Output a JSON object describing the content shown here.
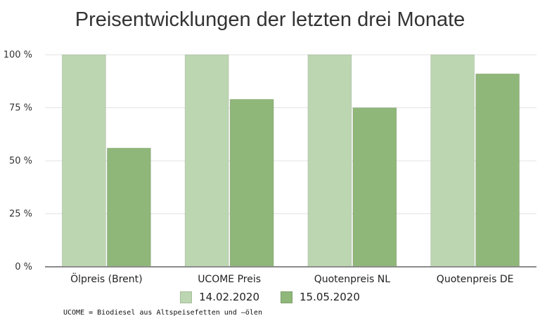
{
  "chart_data": {
    "type": "bar",
    "title": "Preisentwicklungen der letzten drei Monate",
    "categories": [
      "Ölpreis (Brent)",
      "UCOME Preis",
      "Quotenpreis NL",
      "Quotenpreis DE"
    ],
    "series": [
      {
        "name": "14.02.2020",
        "values": [
          100,
          100,
          100,
          100
        ],
        "color": "#bcd6b1"
      },
      {
        "name": "15.05.2020",
        "values": [
          56,
          79,
          75,
          91
        ],
        "color": "#8fb779"
      }
    ],
    "yticks": [
      0,
      25,
      50,
      75,
      100
    ],
    "ytick_suffix": " %",
    "ylim": [
      0,
      100
    ],
    "grid": true,
    "legend_position": "bottom"
  },
  "footnote": "UCOME = Biodiesel aus Altspeisefetten und –ölen"
}
